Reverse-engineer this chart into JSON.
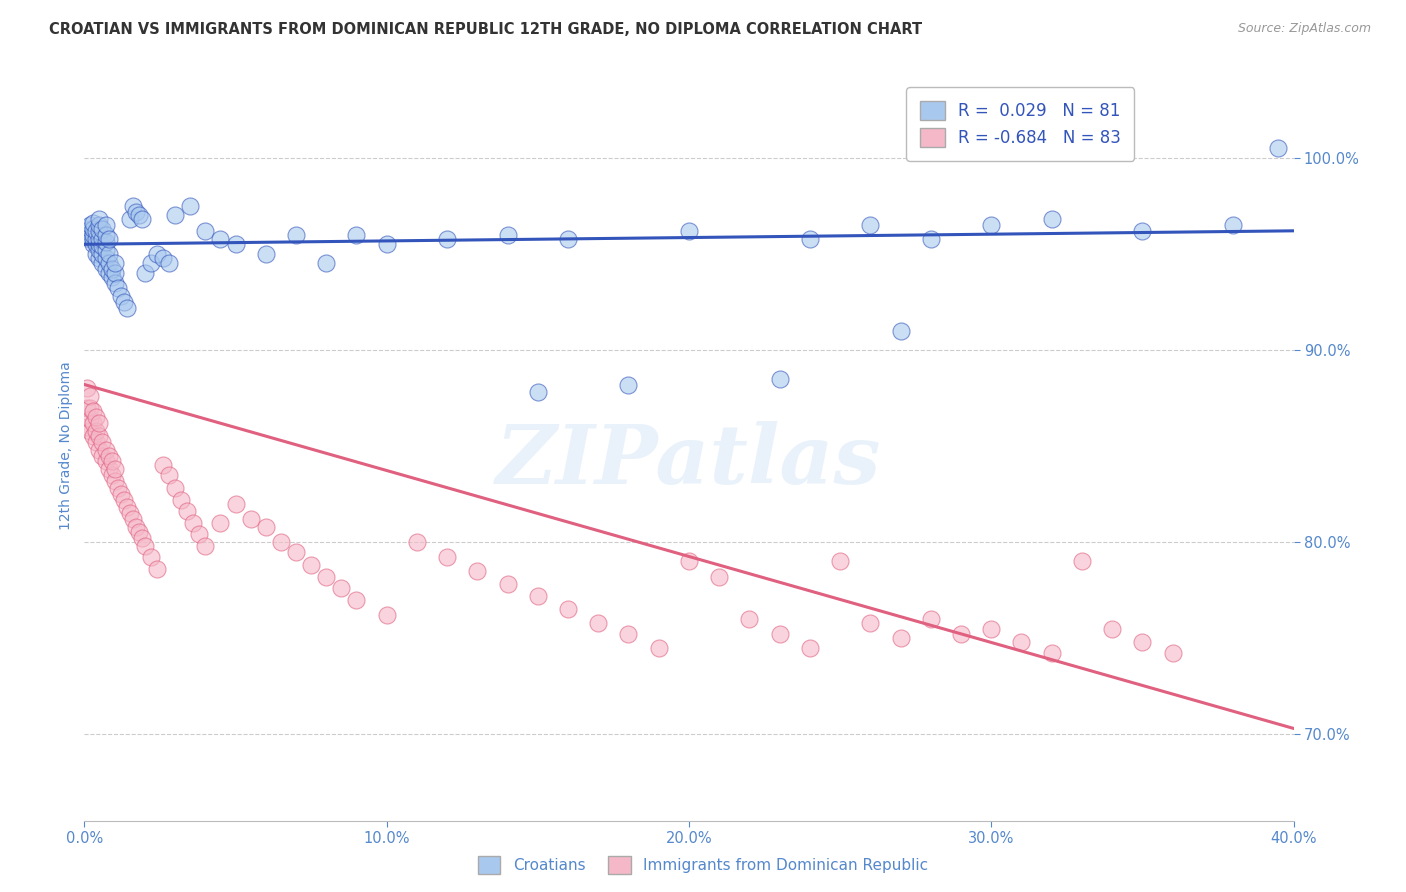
{
  "title": "CROATIAN VS IMMIGRANTS FROM DOMINICAN REPUBLIC 12TH GRADE, NO DIPLOMA CORRELATION CHART",
  "source": "Source: ZipAtlas.com",
  "ylabel": "12th Grade, No Diploma",
  "blue_R": 0.029,
  "blue_N": 81,
  "pink_R": -0.684,
  "pink_N": 83,
  "blue_color": "#A8C8EE",
  "pink_color": "#F5B8C8",
  "blue_line_color": "#3355BB",
  "pink_line_color": "#E06080",
  "watermark": "ZIPatlas",
  "xmin": 0.0,
  "xmax": 0.4,
  "ymin": 0.655,
  "ymax": 1.045,
  "background_color": "#FFFFFF",
  "grid_color": "#CCCCCC",
  "title_color": "#333333",
  "axis_label_color": "#5588CC",
  "tick_label_color": "#5588CC",
  "blue_scatter_x": [
    0.001,
    0.001,
    0.002,
    0.002,
    0.002,
    0.003,
    0.003,
    0.003,
    0.003,
    0.003,
    0.004,
    0.004,
    0.004,
    0.004,
    0.005,
    0.005,
    0.005,
    0.005,
    0.005,
    0.005,
    0.005,
    0.006,
    0.006,
    0.006,
    0.006,
    0.006,
    0.007,
    0.007,
    0.007,
    0.007,
    0.007,
    0.007,
    0.008,
    0.008,
    0.008,
    0.008,
    0.009,
    0.009,
    0.01,
    0.01,
    0.01,
    0.011,
    0.012,
    0.013,
    0.014,
    0.015,
    0.016,
    0.017,
    0.018,
    0.019,
    0.02,
    0.022,
    0.024,
    0.026,
    0.028,
    0.03,
    0.035,
    0.04,
    0.045,
    0.05,
    0.06,
    0.07,
    0.08,
    0.09,
    0.1,
    0.12,
    0.14,
    0.16,
    0.2,
    0.24,
    0.26,
    0.28,
    0.3,
    0.32,
    0.35,
    0.38,
    0.395,
    0.27,
    0.23,
    0.18,
    0.15
  ],
  "blue_scatter_y": [
    0.96,
    0.962,
    0.958,
    0.963,
    0.965,
    0.955,
    0.958,
    0.96,
    0.963,
    0.966,
    0.95,
    0.955,
    0.958,
    0.962,
    0.948,
    0.952,
    0.955,
    0.958,
    0.962,
    0.965,
    0.968,
    0.945,
    0.95,
    0.954,
    0.958,
    0.963,
    0.942,
    0.948,
    0.952,
    0.956,
    0.96,
    0.965,
    0.94,
    0.945,
    0.95,
    0.958,
    0.938,
    0.942,
    0.935,
    0.94,
    0.945,
    0.932,
    0.928,
    0.925,
    0.922,
    0.968,
    0.975,
    0.972,
    0.97,
    0.968,
    0.94,
    0.945,
    0.95,
    0.948,
    0.945,
    0.97,
    0.975,
    0.962,
    0.958,
    0.955,
    0.95,
    0.96,
    0.945,
    0.96,
    0.955,
    0.958,
    0.96,
    0.958,
    0.962,
    0.958,
    0.965,
    0.958,
    0.965,
    0.968,
    0.962,
    0.965,
    1.005,
    0.91,
    0.885,
    0.882,
    0.878
  ],
  "pink_scatter_x": [
    0.001,
    0.001,
    0.001,
    0.002,
    0.002,
    0.002,
    0.002,
    0.003,
    0.003,
    0.003,
    0.004,
    0.004,
    0.004,
    0.005,
    0.005,
    0.005,
    0.006,
    0.006,
    0.007,
    0.007,
    0.008,
    0.008,
    0.009,
    0.009,
    0.01,
    0.01,
    0.011,
    0.012,
    0.013,
    0.014,
    0.015,
    0.016,
    0.017,
    0.018,
    0.019,
    0.02,
    0.022,
    0.024,
    0.026,
    0.028,
    0.03,
    0.032,
    0.034,
    0.036,
    0.038,
    0.04,
    0.045,
    0.05,
    0.055,
    0.06,
    0.065,
    0.07,
    0.075,
    0.08,
    0.085,
    0.09,
    0.1,
    0.11,
    0.12,
    0.13,
    0.14,
    0.15,
    0.16,
    0.17,
    0.18,
    0.19,
    0.2,
    0.21,
    0.22,
    0.23,
    0.24,
    0.25,
    0.26,
    0.27,
    0.28,
    0.29,
    0.3,
    0.31,
    0.32,
    0.33,
    0.34,
    0.35,
    0.36
  ],
  "pink_scatter_y": [
    0.86,
    0.87,
    0.88,
    0.858,
    0.864,
    0.87,
    0.876,
    0.855,
    0.862,
    0.868,
    0.852,
    0.858,
    0.865,
    0.848,
    0.855,
    0.862,
    0.845,
    0.852,
    0.842,
    0.848,
    0.838,
    0.845,
    0.835,
    0.842,
    0.832,
    0.838,
    0.828,
    0.825,
    0.822,
    0.818,
    0.815,
    0.812,
    0.808,
    0.805,
    0.802,
    0.798,
    0.792,
    0.786,
    0.84,
    0.835,
    0.828,
    0.822,
    0.816,
    0.81,
    0.804,
    0.798,
    0.81,
    0.82,
    0.812,
    0.808,
    0.8,
    0.795,
    0.788,
    0.782,
    0.776,
    0.77,
    0.762,
    0.8,
    0.792,
    0.785,
    0.778,
    0.772,
    0.765,
    0.758,
    0.752,
    0.745,
    0.79,
    0.782,
    0.76,
    0.752,
    0.745,
    0.79,
    0.758,
    0.75,
    0.76,
    0.752,
    0.755,
    0.748,
    0.742,
    0.79,
    0.755,
    0.748,
    0.742
  ]
}
